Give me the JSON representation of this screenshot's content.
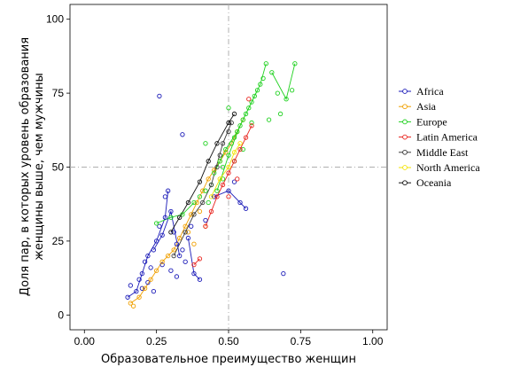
{
  "chart_data": {
    "type": "scatter",
    "title": "",
    "xlabel": "Образовательное преимущество женщин",
    "ylabel_lines": [
      "Доля пар, в которых уровень образования",
      "женщины выше, чем мужчины"
    ],
    "xlim": [
      -0.05,
      1.05
    ],
    "ylim": [
      -5,
      105
    ],
    "x_ticks": [
      "0.00",
      "0.25",
      "0.50",
      "0.75",
      "1.00"
    ],
    "y_ticks": [
      "0",
      "25",
      "50",
      "75",
      "100"
    ],
    "reference_lines": {
      "x": 0.5,
      "y": 50
    },
    "grid": false,
    "legend_position": "right",
    "series": [
      {
        "name": "Africa",
        "color": "#1a1ab8",
        "points": [
          [
            0.15,
            6
          ],
          [
            0.16,
            10
          ],
          [
            0.18,
            8
          ],
          [
            0.19,
            12
          ],
          [
            0.2,
            14
          ],
          [
            0.21,
            18
          ],
          [
            0.22,
            20
          ],
          [
            0.23,
            16
          ],
          [
            0.24,
            22
          ],
          [
            0.25,
            25
          ],
          [
            0.26,
            30
          ],
          [
            0.27,
            27
          ],
          [
            0.28,
            33
          ],
          [
            0.28,
            40
          ],
          [
            0.29,
            42
          ],
          [
            0.3,
            35
          ],
          [
            0.31,
            28
          ],
          [
            0.32,
            24
          ],
          [
            0.33,
            20
          ],
          [
            0.34,
            22
          ],
          [
            0.35,
            18
          ],
          [
            0.36,
            26
          ],
          [
            0.37,
            30
          ],
          [
            0.38,
            14
          ],
          [
            0.4,
            12
          ],
          [
            0.42,
            32
          ],
          [
            0.45,
            40
          ],
          [
            0.5,
            42
          ],
          [
            0.52,
            45
          ],
          [
            0.54,
            38
          ],
          [
            0.56,
            36
          ],
          [
            0.26,
            74
          ],
          [
            0.34,
            61
          ],
          [
            0.69,
            14
          ],
          [
            0.2,
            9
          ],
          [
            0.22,
            11
          ],
          [
            0.24,
            8
          ],
          [
            0.27,
            17
          ],
          [
            0.3,
            15
          ],
          [
            0.32,
            13
          ]
        ],
        "paths": [
          [
            [
              0.15,
              6
            ],
            [
              0.18,
              8
            ],
            [
              0.2,
              14
            ],
            [
              0.22,
              20
            ],
            [
              0.25,
              25
            ],
            [
              0.28,
              33
            ],
            [
              0.29,
              42
            ]
          ],
          [
            [
              0.24,
              22
            ],
            [
              0.27,
              27
            ],
            [
              0.3,
              35
            ],
            [
              0.33,
              20
            ]
          ],
          [
            [
              0.36,
              26
            ],
            [
              0.38,
              14
            ],
            [
              0.4,
              12
            ]
          ],
          [
            [
              0.45,
              40
            ],
            [
              0.5,
              42
            ],
            [
              0.54,
              38
            ],
            [
              0.56,
              36
            ]
          ]
        ]
      },
      {
        "name": "Asia",
        "color": "#f0a000",
        "points": [
          [
            0.16,
            4
          ],
          [
            0.17,
            3
          ],
          [
            0.19,
            6
          ],
          [
            0.21,
            9
          ],
          [
            0.23,
            12
          ],
          [
            0.25,
            15
          ],
          [
            0.27,
            18
          ],
          [
            0.29,
            20
          ],
          [
            0.31,
            22
          ],
          [
            0.33,
            26
          ],
          [
            0.35,
            30
          ],
          [
            0.37,
            34
          ],
          [
            0.39,
            38
          ],
          [
            0.41,
            42
          ],
          [
            0.43,
            46
          ],
          [
            0.45,
            49
          ],
          [
            0.47,
            52
          ],
          [
            0.49,
            55
          ],
          [
            0.51,
            58
          ],
          [
            0.53,
            62
          ],
          [
            0.55,
            66
          ],
          [
            0.36,
            28
          ],
          [
            0.38,
            24
          ],
          [
            0.4,
            35
          ],
          [
            0.42,
            30
          ]
        ],
        "paths": [
          [
            [
              0.16,
              4
            ],
            [
              0.19,
              6
            ],
            [
              0.23,
              12
            ],
            [
              0.27,
              18
            ],
            [
              0.31,
              22
            ],
            [
              0.35,
              30
            ],
            [
              0.39,
              38
            ],
            [
              0.43,
              46
            ],
            [
              0.47,
              52
            ],
            [
              0.51,
              58
            ],
            [
              0.55,
              66
            ]
          ]
        ]
      },
      {
        "name": "Europe",
        "color": "#1fd11f",
        "points": [
          [
            0.25,
            31
          ],
          [
            0.3,
            33
          ],
          [
            0.34,
            34
          ],
          [
            0.38,
            38
          ],
          [
            0.4,
            40
          ],
          [
            0.42,
            42
          ],
          [
            0.44,
            44
          ],
          [
            0.45,
            48
          ],
          [
            0.47,
            52
          ],
          [
            0.48,
            50
          ],
          [
            0.49,
            56
          ],
          [
            0.5,
            54
          ],
          [
            0.51,
            58
          ],
          [
            0.52,
            60
          ],
          [
            0.53,
            62
          ],
          [
            0.54,
            64
          ],
          [
            0.55,
            66
          ],
          [
            0.56,
            68
          ],
          [
            0.57,
            70
          ],
          [
            0.58,
            72
          ],
          [
            0.59,
            74
          ],
          [
            0.6,
            76
          ],
          [
            0.61,
            78
          ],
          [
            0.62,
            80
          ],
          [
            0.63,
            85
          ],
          [
            0.65,
            82
          ],
          [
            0.67,
            75
          ],
          [
            0.7,
            73
          ],
          [
            0.72,
            76
          ],
          [
            0.73,
            85
          ],
          [
            0.68,
            68
          ],
          [
            0.64,
            66
          ],
          [
            0.55,
            56
          ],
          [
            0.52,
            52
          ],
          [
            0.48,
            46
          ],
          [
            0.46,
            42
          ],
          [
            0.43,
            38
          ],
          [
            0.42,
            58
          ],
          [
            0.5,
            70
          ],
          [
            0.58,
            65
          ]
        ],
        "paths": [
          [
            [
              0.25,
              31
            ],
            [
              0.3,
              33
            ],
            [
              0.34,
              34
            ],
            [
              0.38,
              38
            ]
          ],
          [
            [
              0.45,
              48
            ],
            [
              0.49,
              56
            ],
            [
              0.53,
              62
            ],
            [
              0.57,
              70
            ],
            [
              0.61,
              78
            ],
            [
              0.63,
              85
            ]
          ],
          [
            [
              0.65,
              82
            ],
            [
              0.7,
              73
            ],
            [
              0.73,
              85
            ]
          ],
          [
            [
              0.46,
              42
            ],
            [
              0.5,
              54
            ],
            [
              0.54,
              64
            ],
            [
              0.58,
              72
            ],
            [
              0.6,
              76
            ]
          ]
        ]
      },
      {
        "name": "Latin America",
        "color": "#e8231d",
        "points": [
          [
            0.4,
            19
          ],
          [
            0.38,
            17
          ],
          [
            0.42,
            30
          ],
          [
            0.44,
            35
          ],
          [
            0.46,
            40
          ],
          [
            0.48,
            44
          ],
          [
            0.5,
            48
          ],
          [
            0.52,
            52
          ],
          [
            0.54,
            56
          ],
          [
            0.56,
            60
          ],
          [
            0.58,
            64
          ],
          [
            0.5,
            40
          ],
          [
            0.53,
            46
          ],
          [
            0.57,
            73
          ]
        ],
        "paths": [
          [
            [
              0.38,
              17
            ],
            [
              0.4,
              19
            ]
          ],
          [
            [
              0.42,
              30
            ],
            [
              0.46,
              40
            ],
            [
              0.5,
              48
            ],
            [
              0.54,
              56
            ],
            [
              0.58,
              64
            ]
          ]
        ]
      },
      {
        "name": "Middle East",
        "color": "#3a3a3a",
        "points": [
          [
            0.31,
            20
          ],
          [
            0.35,
            28
          ],
          [
            0.38,
            34
          ],
          [
            0.41,
            38
          ],
          [
            0.44,
            44
          ],
          [
            0.46,
            50
          ],
          [
            0.47,
            54
          ],
          [
            0.48,
            58
          ],
          [
            0.5,
            62
          ],
          [
            0.51,
            65
          ]
        ],
        "paths": [
          [
            [
              0.31,
              20
            ],
            [
              0.35,
              28
            ],
            [
              0.38,
              34
            ],
            [
              0.41,
              38
            ],
            [
              0.44,
              44
            ],
            [
              0.48,
              58
            ],
            [
              0.51,
              65
            ]
          ]
        ]
      },
      {
        "name": "North America",
        "color": "#f3e300",
        "points": [
          [
            0.44,
            40
          ],
          [
            0.47,
            46
          ],
          [
            0.5,
            50
          ],
          [
            0.52,
            55
          ],
          [
            0.54,
            58
          ]
        ],
        "paths": [
          [
            [
              0.44,
              40
            ],
            [
              0.47,
              46
            ],
            [
              0.5,
              50
            ],
            [
              0.52,
              55
            ],
            [
              0.54,
              58
            ]
          ]
        ]
      },
      {
        "name": "Oceania",
        "color": "#111111",
        "points": [
          [
            0.3,
            28
          ],
          [
            0.33,
            33
          ],
          [
            0.36,
            38
          ],
          [
            0.4,
            45
          ],
          [
            0.43,
            52
          ],
          [
            0.46,
            58
          ],
          [
            0.5,
            65
          ],
          [
            0.52,
            68
          ]
        ],
        "paths": [
          [
            [
              0.3,
              28
            ],
            [
              0.33,
              33
            ],
            [
              0.36,
              38
            ],
            [
              0.4,
              45
            ],
            [
              0.43,
              52
            ],
            [
              0.46,
              58
            ],
            [
              0.5,
              65
            ],
            [
              0.52,
              68
            ]
          ]
        ]
      }
    ]
  }
}
